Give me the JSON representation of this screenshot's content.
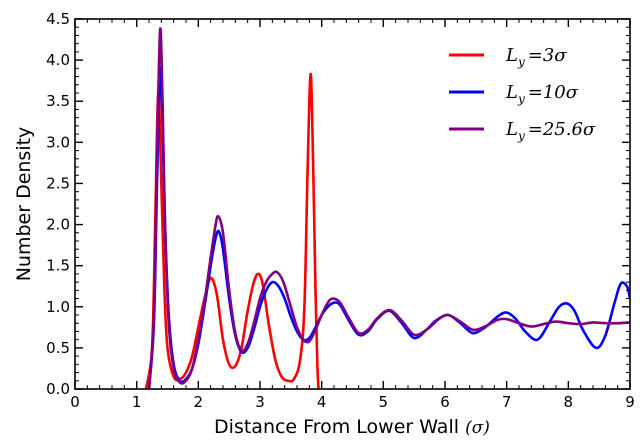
{
  "chart_data": {
    "type": "line",
    "title": "",
    "xlabel": "Distance From Lower Wall",
    "xlabel_unit": "(σ)",
    "ylabel": "Number Density",
    "xlim": [
      0,
      9
    ],
    "ylim": [
      0,
      4.5
    ],
    "xticks": [
      0,
      1,
      2,
      3,
      4,
      5,
      6,
      7,
      8,
      9
    ],
    "xtick_labels": [
      "0",
      "1",
      "2",
      "3",
      "4",
      "5",
      "6",
      "7",
      "8",
      "9"
    ],
    "yticks": [
      0,
      0.5,
      1,
      1.5,
      2,
      2.5,
      3,
      3.5,
      4,
      4.5
    ],
    "ytick_labels": [
      "0.0",
      "0.5",
      "1.0",
      "1.5",
      "2.0",
      "2.5",
      "3.0",
      "3.5",
      "4.0",
      "4.5"
    ],
    "grid": false,
    "legend_position": "top-right",
    "series": [
      {
        "name_main": "L",
        "name_sub": "y",
        "name_value": "=3σ",
        "color": "#ff0000",
        "x": [
          1.15,
          1.25,
          1.3,
          1.35,
          1.4,
          1.45,
          1.5,
          1.6,
          1.7,
          1.8,
          1.9,
          2.0,
          2.1,
          2.2,
          2.3,
          2.4,
          2.5,
          2.6,
          2.7,
          2.8,
          2.9,
          2.98,
          3.05,
          3.15,
          3.25,
          3.35,
          3.45,
          3.55,
          3.65,
          3.72,
          3.77,
          3.82,
          3.86,
          3.9,
          3.93,
          3.95
        ],
        "y": [
          0.0,
          0.5,
          2.0,
          3.6,
          2.5,
          1.2,
          0.5,
          0.15,
          0.12,
          0.2,
          0.4,
          0.75,
          1.1,
          1.35,
          1.15,
          0.6,
          0.3,
          0.28,
          0.5,
          0.95,
          1.3,
          1.4,
          1.25,
          0.75,
          0.35,
          0.15,
          0.1,
          0.12,
          0.35,
          1.0,
          2.6,
          3.83,
          2.8,
          1.2,
          0.3,
          0.0
        ]
      },
      {
        "name_main": "L",
        "name_sub": "y",
        "name_value": "=10σ",
        "color": "#0000ff",
        "x": [
          1.2,
          1.28,
          1.33,
          1.38,
          1.42,
          1.46,
          1.52,
          1.6,
          1.7,
          1.8,
          1.9,
          2.0,
          2.1,
          2.2,
          2.27,
          2.33,
          2.4,
          2.5,
          2.6,
          2.7,
          2.8,
          2.9,
          3.0,
          3.1,
          3.2,
          3.3,
          3.4,
          3.5,
          3.6,
          3.7,
          3.8,
          3.9,
          4.0,
          4.1,
          4.2,
          4.3,
          4.45,
          4.6,
          4.75,
          4.9,
          5.1,
          5.3,
          5.5,
          5.7,
          5.85,
          6.05,
          6.25,
          6.45,
          6.65,
          6.85,
          7.0,
          7.15,
          7.3,
          7.5,
          7.7,
          7.85,
          7.98,
          8.1,
          8.25,
          8.45,
          8.6,
          8.75,
          8.85,
          8.95,
          9.0
        ],
        "y": [
          0.0,
          0.8,
          2.5,
          3.9,
          3.2,
          2.0,
          0.9,
          0.3,
          0.1,
          0.12,
          0.25,
          0.55,
          1.0,
          1.5,
          1.8,
          1.92,
          1.7,
          1.1,
          0.65,
          0.45,
          0.5,
          0.72,
          1.0,
          1.2,
          1.3,
          1.25,
          1.1,
          0.88,
          0.7,
          0.6,
          0.62,
          0.75,
          0.9,
          1.0,
          1.05,
          1.02,
          0.82,
          0.66,
          0.7,
          0.85,
          0.95,
          0.8,
          0.62,
          0.72,
          0.83,
          0.9,
          0.8,
          0.68,
          0.75,
          0.88,
          0.93,
          0.85,
          0.7,
          0.6,
          0.82,
          1.0,
          1.04,
          0.95,
          0.7,
          0.5,
          0.65,
          1.05,
          1.28,
          1.25,
          1.1
        ]
      },
      {
        "name_main": "L",
        "name_sub": "y",
        "name_value": "=25.6σ",
        "color": "#800080",
        "x": [
          1.2,
          1.28,
          1.33,
          1.38,
          1.42,
          1.46,
          1.52,
          1.6,
          1.7,
          1.8,
          1.9,
          2.0,
          2.1,
          2.2,
          2.27,
          2.32,
          2.4,
          2.5,
          2.6,
          2.7,
          2.8,
          2.9,
          3.0,
          3.1,
          3.2,
          3.28,
          3.38,
          3.5,
          3.6,
          3.7,
          3.8,
          3.9,
          4.0,
          4.1,
          4.18,
          4.3,
          4.45,
          4.6,
          4.75,
          4.9,
          5.1,
          5.3,
          5.5,
          5.7,
          5.9,
          6.05,
          6.25,
          6.45,
          6.65,
          6.85,
          7.0,
          7.2,
          7.4,
          7.6,
          7.8,
          8.0,
          8.2,
          8.4,
          8.6,
          8.8,
          9.0
        ],
        "y": [
          0.0,
          0.9,
          2.8,
          4.37,
          3.5,
          2.0,
          0.8,
          0.25,
          0.08,
          0.1,
          0.25,
          0.6,
          1.05,
          1.6,
          1.95,
          2.1,
          1.9,
          1.2,
          0.68,
          0.47,
          0.55,
          0.8,
          1.1,
          1.3,
          1.4,
          1.42,
          1.3,
          1.0,
          0.75,
          0.6,
          0.58,
          0.72,
          0.9,
          1.05,
          1.1,
          1.05,
          0.85,
          0.68,
          0.72,
          0.86,
          0.96,
          0.83,
          0.66,
          0.72,
          0.85,
          0.9,
          0.82,
          0.72,
          0.76,
          0.84,
          0.85,
          0.8,
          0.76,
          0.79,
          0.82,
          0.8,
          0.79,
          0.81,
          0.8,
          0.8,
          0.81
        ]
      }
    ]
  }
}
